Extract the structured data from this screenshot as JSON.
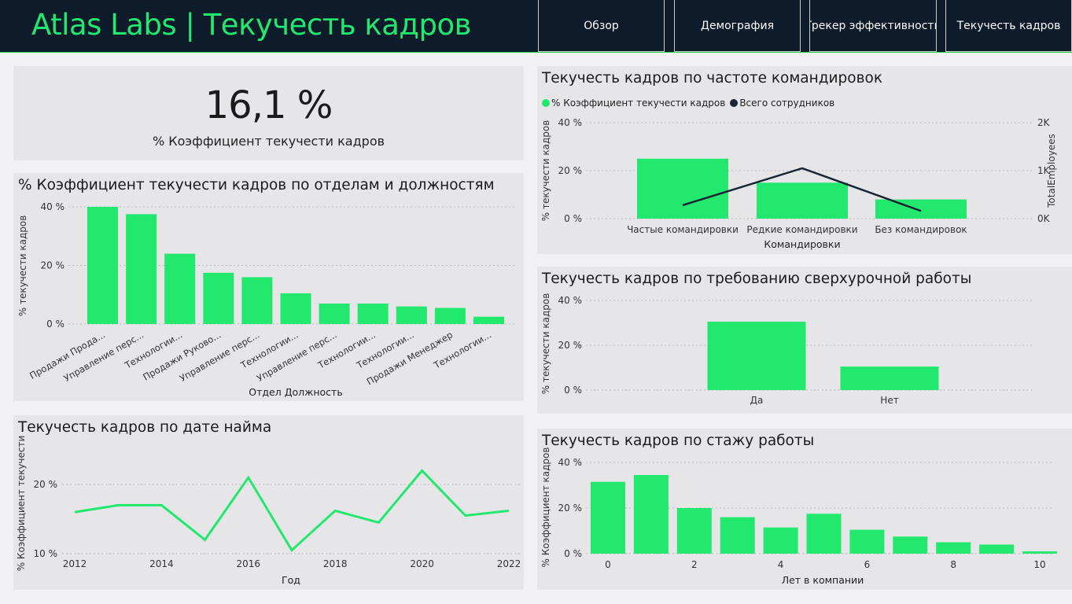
{
  "header": {
    "title": "Atlas Labs | Текучесть кадров",
    "nav": [
      "Обзор",
      "Демография",
      "Трекер эффективности",
      "Текучесть кадров"
    ]
  },
  "colors": {
    "bar": "#23e86e",
    "line_dark": "#1b2433",
    "header_bg": "#0d1b2a",
    "accent": "#22e870"
  },
  "kpi": {
    "value": "16,1 %",
    "label": "% Коэффициент текучести кадров"
  },
  "chart_data": [
    {
      "id": "dept",
      "type": "bar",
      "title": "% Коэффициент текучести кадров по отделам и должностям",
      "xlabel": "Отдел Должность",
      "ylabel": "% текучести кадров",
      "ylim": [
        0,
        40
      ],
      "yticks": [
        "0 %",
        "20 %",
        "40 %"
      ],
      "categories": [
        "Продажи Прода...",
        "Управление перс...",
        "Технологии...",
        "Продажи Руково...",
        "Управление перс...",
        "Технологии...",
        "Управление перс...",
        "Технологии...",
        "Технологии...",
        "Продажи Менеджер",
        "Технологии..."
      ],
      "values": [
        40,
        37.5,
        24,
        17.5,
        16,
        10.5,
        7,
        7,
        6,
        5.5,
        2.5
      ]
    },
    {
      "id": "hire",
      "type": "line",
      "title": "Текучесть кадров по дате найма",
      "xlabel": "Год",
      "ylabel": "% Коэффициент текучести",
      "ylim": [
        10,
        22.5
      ],
      "yticks": [
        "10 %",
        "20 %"
      ],
      "x": [
        2012,
        2013,
        2014,
        2015,
        2016,
        2017,
        2018,
        2019,
        2020,
        2021,
        2022
      ],
      "xticks": [
        "2012",
        "2014",
        "2016",
        "2018",
        "2020",
        "2022"
      ],
      "values": [
        16,
        17,
        17,
        12,
        21,
        10.5,
        16.2,
        14.5,
        22,
        15.5,
        16.2
      ]
    },
    {
      "id": "travel",
      "type": "bar",
      "title": "Текучесть кадров по частоте командировок",
      "xlabel": "Командировки",
      "ylabel": "% текучести кадров",
      "y2label": "TotalEmployees",
      "ylim": [
        0,
        40
      ],
      "yticks": [
        "0 %",
        "20 %",
        "40 %"
      ],
      "y2ticks": [
        "0K",
        "1K",
        "2K"
      ],
      "categories": [
        "Частые командировки",
        "Редкие командировки",
        "Без командировок"
      ],
      "legend": [
        "% Коэффициент текучести кадров",
        "Всего сотрудников"
      ],
      "series": [
        {
          "name": "% Коэффициент текучести кадров",
          "values": [
            25,
            15,
            8
          ]
        },
        {
          "name": "Всего сотрудников",
          "values": [
            280,
            1050,
            160
          ]
        }
      ]
    },
    {
      "id": "overtime",
      "type": "bar",
      "title": "Текучесть кадров по требованию сверхурочной работы",
      "ylabel": "% текучести кадров",
      "ylim": [
        0,
        40
      ],
      "yticks": [
        "0 %",
        "20 %",
        "40 %"
      ],
      "categories": [
        "Да",
        "Нет"
      ],
      "values": [
        30.5,
        10.5
      ]
    },
    {
      "id": "tenure",
      "type": "bar",
      "title": "Текучесть кадров по стажу работы",
      "xlabel": "Лет в компании",
      "ylabel": "% Коэффициент кадров",
      "ylim": [
        0,
        40
      ],
      "yticks": [
        "0 %",
        "20 %",
        "40 %"
      ],
      "x": [
        0,
        1,
        2,
        3,
        4,
        5,
        6,
        7,
        8,
        9,
        10
      ],
      "xticks": [
        "0",
        "2",
        "4",
        "6",
        "8",
        "10"
      ],
      "values": [
        31.5,
        34.5,
        20,
        16,
        11.5,
        17.5,
        10.5,
        7.5,
        5,
        4,
        1
      ]
    }
  ]
}
